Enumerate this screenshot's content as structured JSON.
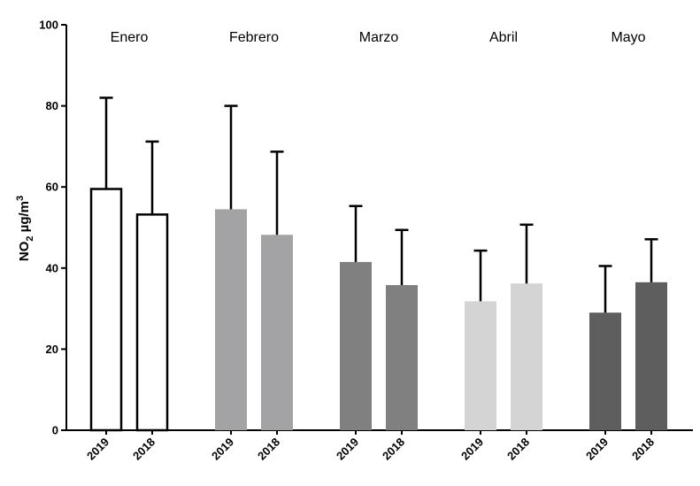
{
  "chart_data": {
    "type": "bar",
    "ylabel": {
      "main": "NO",
      "sub": "2",
      "unit": " µg/m",
      "sup": "3"
    },
    "ylim": [
      0,
      100
    ],
    "yticks": [
      0,
      20,
      40,
      60,
      80,
      100
    ],
    "grid": false,
    "groups": [
      {
        "label": "Enero",
        "color": "#ffffff",
        "bars": [
          {
            "category": "2019",
            "value": 59.5,
            "error": 22.5
          },
          {
            "category": "2018",
            "value": 53.2,
            "error": 18.0
          }
        ]
      },
      {
        "label": "Febrero",
        "color": "#a3a3a6",
        "bars": [
          {
            "category": "2019",
            "value": 54.5,
            "error": 25.5
          },
          {
            "category": "2018",
            "value": 48.2,
            "error": 20.5
          }
        ]
      },
      {
        "label": "Marzo",
        "color": "#808080",
        "bars": [
          {
            "category": "2019",
            "value": 41.5,
            "error": 13.8
          },
          {
            "category": "2018",
            "value": 35.8,
            "error": 13.6
          }
        ]
      },
      {
        "label": "Abril",
        "color": "#d4d4d4",
        "bars": [
          {
            "category": "2019",
            "value": 31.8,
            "error": 12.5
          },
          {
            "category": "2018",
            "value": 36.2,
            "error": 14.5
          }
        ]
      },
      {
        "label": "Mayo",
        "color": "#5e5e5e",
        "bars": [
          {
            "category": "2019",
            "value": 29.0,
            "error": 11.5
          },
          {
            "category": "2018",
            "value": 36.5,
            "error": 10.6
          }
        ]
      }
    ]
  }
}
